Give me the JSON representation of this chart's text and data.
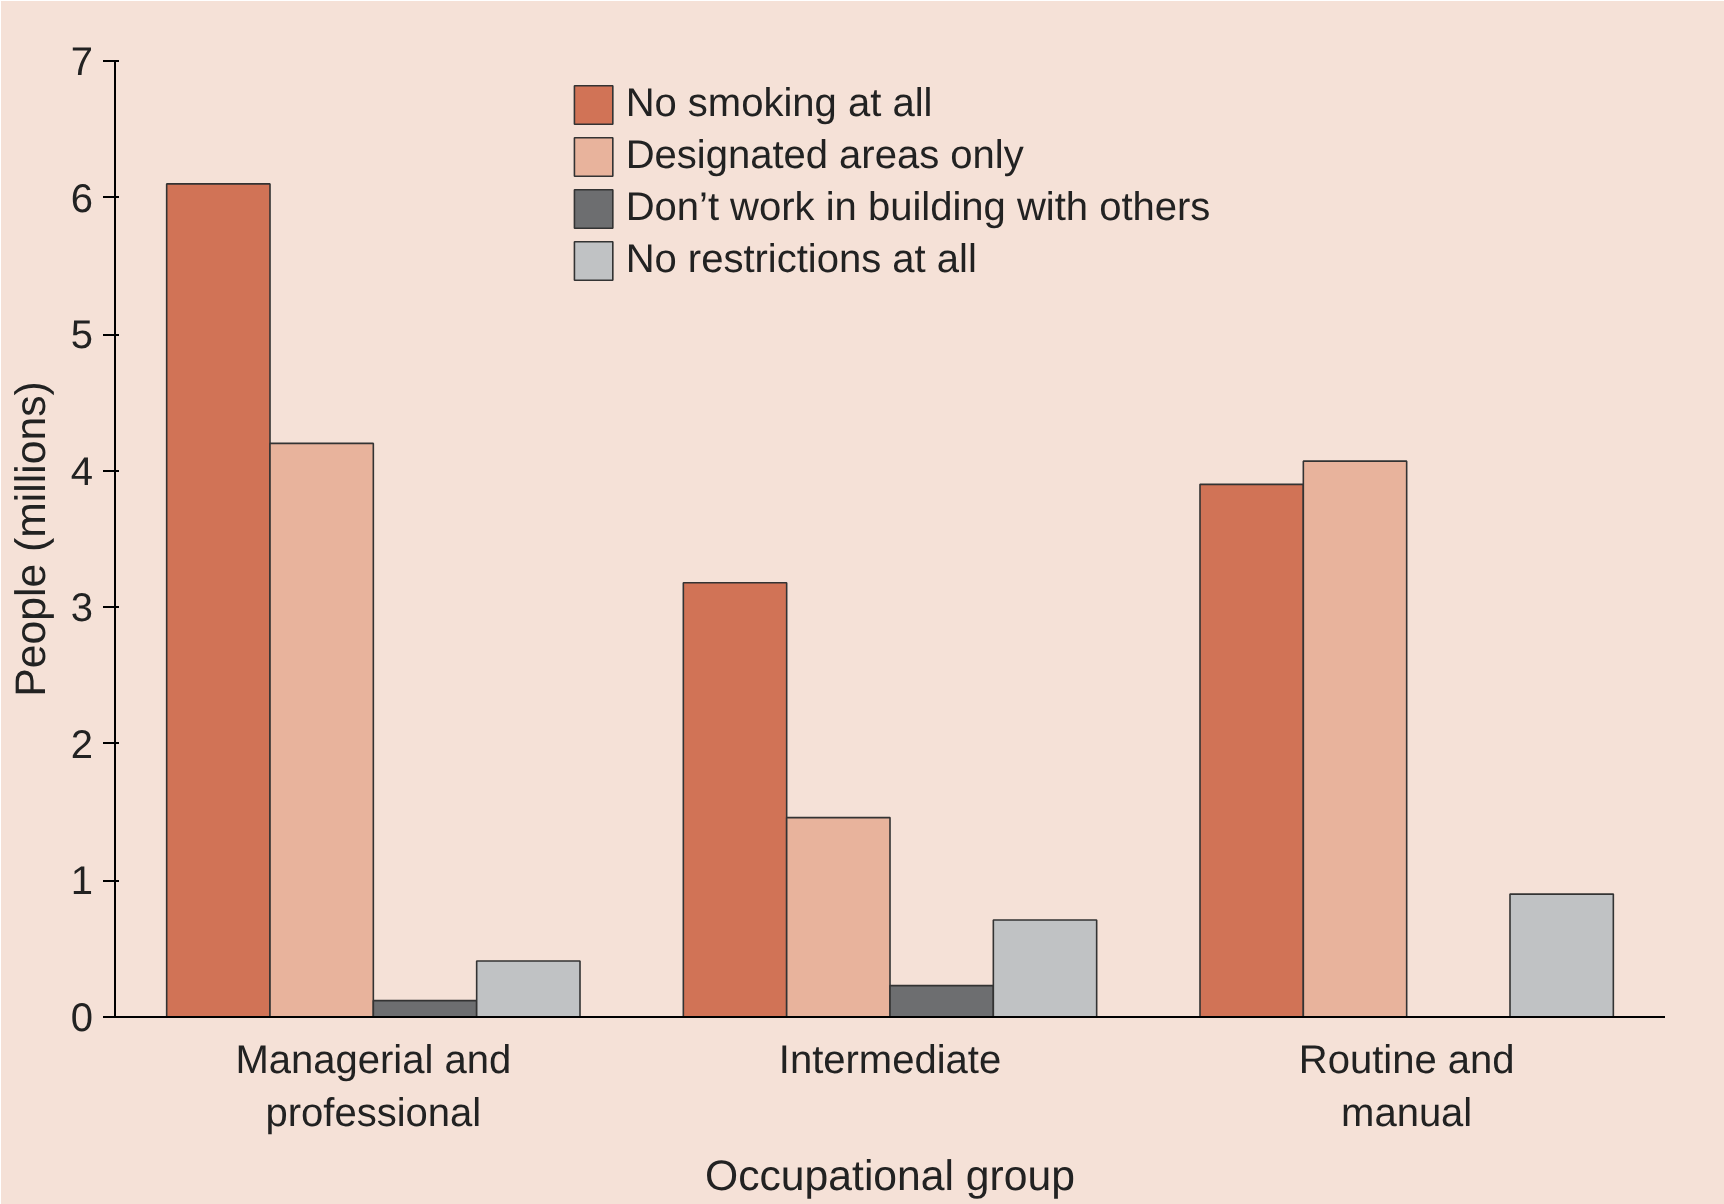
{
  "chart_data": {
    "type": "bar",
    "xlabel": "Occupational group",
    "ylabel": "People (millions)",
    "categories": [
      "Managerial and professional",
      "Intermediate",
      "Routine and manual"
    ],
    "series": [
      {
        "name": "No smoking at all",
        "color": "#d17356",
        "values": [
          6.1,
          3.18,
          3.9
        ]
      },
      {
        "name": "Designated areas only",
        "color": "#e8b39c",
        "values": [
          4.2,
          1.46,
          4.07
        ]
      },
      {
        "name": "Don’t work in building with others",
        "color": "#6d6e70",
        "values": [
          0.12,
          0.23,
          null
        ]
      },
      {
        "name": "No restrictions at all",
        "color": "#c0c2c4",
        "values": [
          0.41,
          0.71,
          0.9
        ]
      }
    ],
    "ylim": [
      0,
      7
    ],
    "yticks": [
      0,
      1,
      2,
      3,
      4,
      5,
      6,
      7
    ],
    "grid": false,
    "legend": "top"
  }
}
